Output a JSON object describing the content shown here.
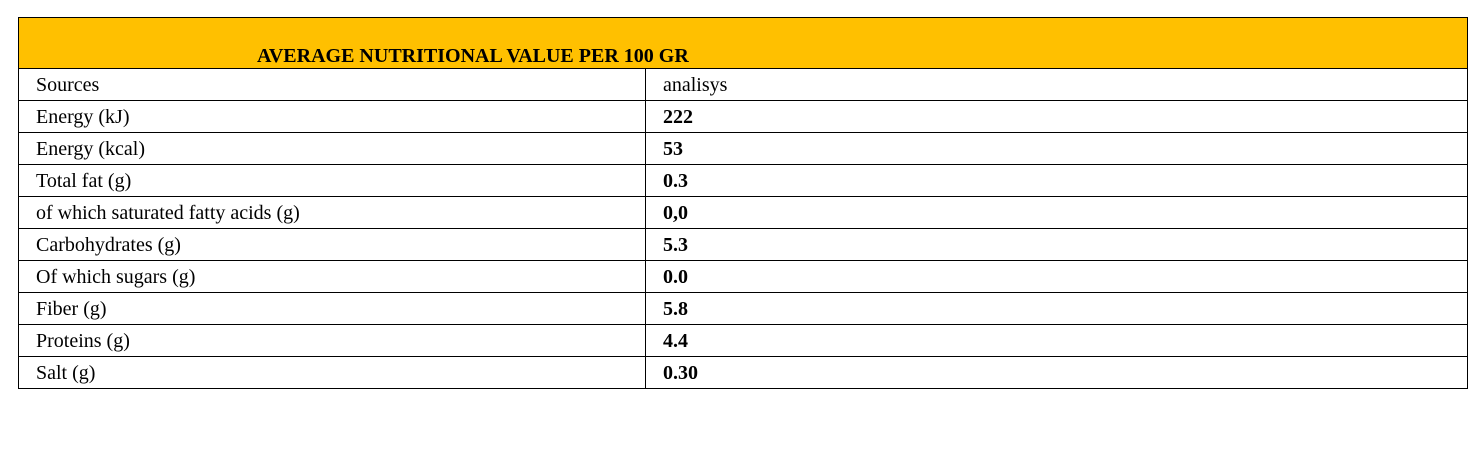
{
  "title": "AVERAGE NUTRITIONAL VALUE PER 100 GR",
  "colors": {
    "header_bg": "#FFC000",
    "border": "#000000",
    "text": "#000000"
  },
  "rows": [
    {
      "label": "Sources",
      "value": "analisys",
      "bold": false
    },
    {
      "label": "Energy  (kJ)",
      "value": "222",
      "bold": true
    },
    {
      "label": "Energy  (kcal)",
      "value": "53",
      "bold": true
    },
    {
      "label": "Total fat (g)",
      "value": "0.3",
      "bold": true
    },
    {
      "label": "of which saturated fatty acids (g)",
      "value": "0,0",
      "bold": true
    },
    {
      "label": "Carbohydrates (g)",
      "value": "5.3",
      "bold": true
    },
    {
      "label": "Of which sugars (g)",
      "value": "0.0",
      "bold": true
    },
    {
      "label": "Fiber (g)",
      "value": "5.8",
      "bold": true
    },
    {
      "label": "Proteins (g)",
      "value": "4.4",
      "bold": true
    },
    {
      "label": "Salt (g)",
      "value": "0.30",
      "bold": true
    }
  ]
}
